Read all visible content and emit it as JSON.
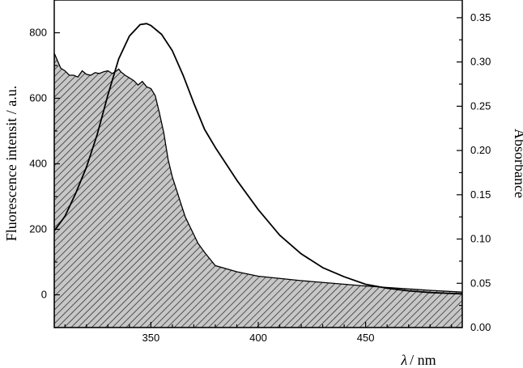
{
  "chart_data": {
    "type": "area",
    "xlabel_symbol": "λ",
    "xlabel_unit": "/ nm",
    "ylabel_left": "Fluorescence intensit / a.u.",
    "ylabel_right": "Absorbance",
    "xlim": [
      305,
      495
    ],
    "ylim_left": [
      -100,
      900
    ],
    "ylim_right": [
      0.0,
      0.37
    ],
    "x_ticks": [
      350,
      400,
      450
    ],
    "y_ticks_left": [
      0,
      200,
      400,
      600,
      800
    ],
    "y_ticks_right": [
      "0.00",
      "0.05",
      "0.10",
      "0.15",
      "0.20",
      "0.25",
      "0.30",
      "0.35"
    ],
    "series": [
      {
        "axis": "right",
        "style": "hatched-fill",
        "x": [
          305,
          308,
          310,
          312,
          314,
          316,
          318,
          320,
          322,
          324,
          326,
          328,
          330,
          332,
          334,
          335,
          336,
          338,
          340,
          342,
          344,
          346,
          348,
          350,
          352,
          354,
          356,
          358,
          360,
          362,
          364,
          366,
          368,
          370,
          372,
          375,
          380,
          390,
          400,
          420,
          450,
          480,
          495
        ],
        "values": [
          0.31,
          0.293,
          0.29,
          0.285,
          0.285,
          0.283,
          0.29,
          0.286,
          0.285,
          0.288,
          0.287,
          0.289,
          0.29,
          0.287,
          0.29,
          0.292,
          0.289,
          0.285,
          0.282,
          0.279,
          0.274,
          0.278,
          0.272,
          0.27,
          0.262,
          0.242,
          0.22,
          0.19,
          0.17,
          0.155,
          0.14,
          0.125,
          0.115,
          0.105,
          0.095,
          0.085,
          0.07,
          0.063,
          0.058,
          0.053,
          0.047,
          0.042,
          0.04
        ]
      },
      {
        "axis": "left",
        "style": "line",
        "x": [
          305,
          310,
          315,
          320,
          325,
          330,
          335,
          340,
          345,
          348,
          350,
          355,
          360,
          365,
          370,
          375,
          380,
          390,
          400,
          410,
          420,
          430,
          440,
          450,
          460,
          470,
          480,
          490,
          495
        ],
        "values": [
          195,
          240,
          310,
          390,
          490,
          610,
          720,
          790,
          825,
          828,
          822,
          795,
          745,
          670,
          585,
          505,
          450,
          350,
          260,
          182,
          125,
          83,
          55,
          32,
          20,
          12,
          7,
          4,
          3
        ]
      }
    ]
  }
}
